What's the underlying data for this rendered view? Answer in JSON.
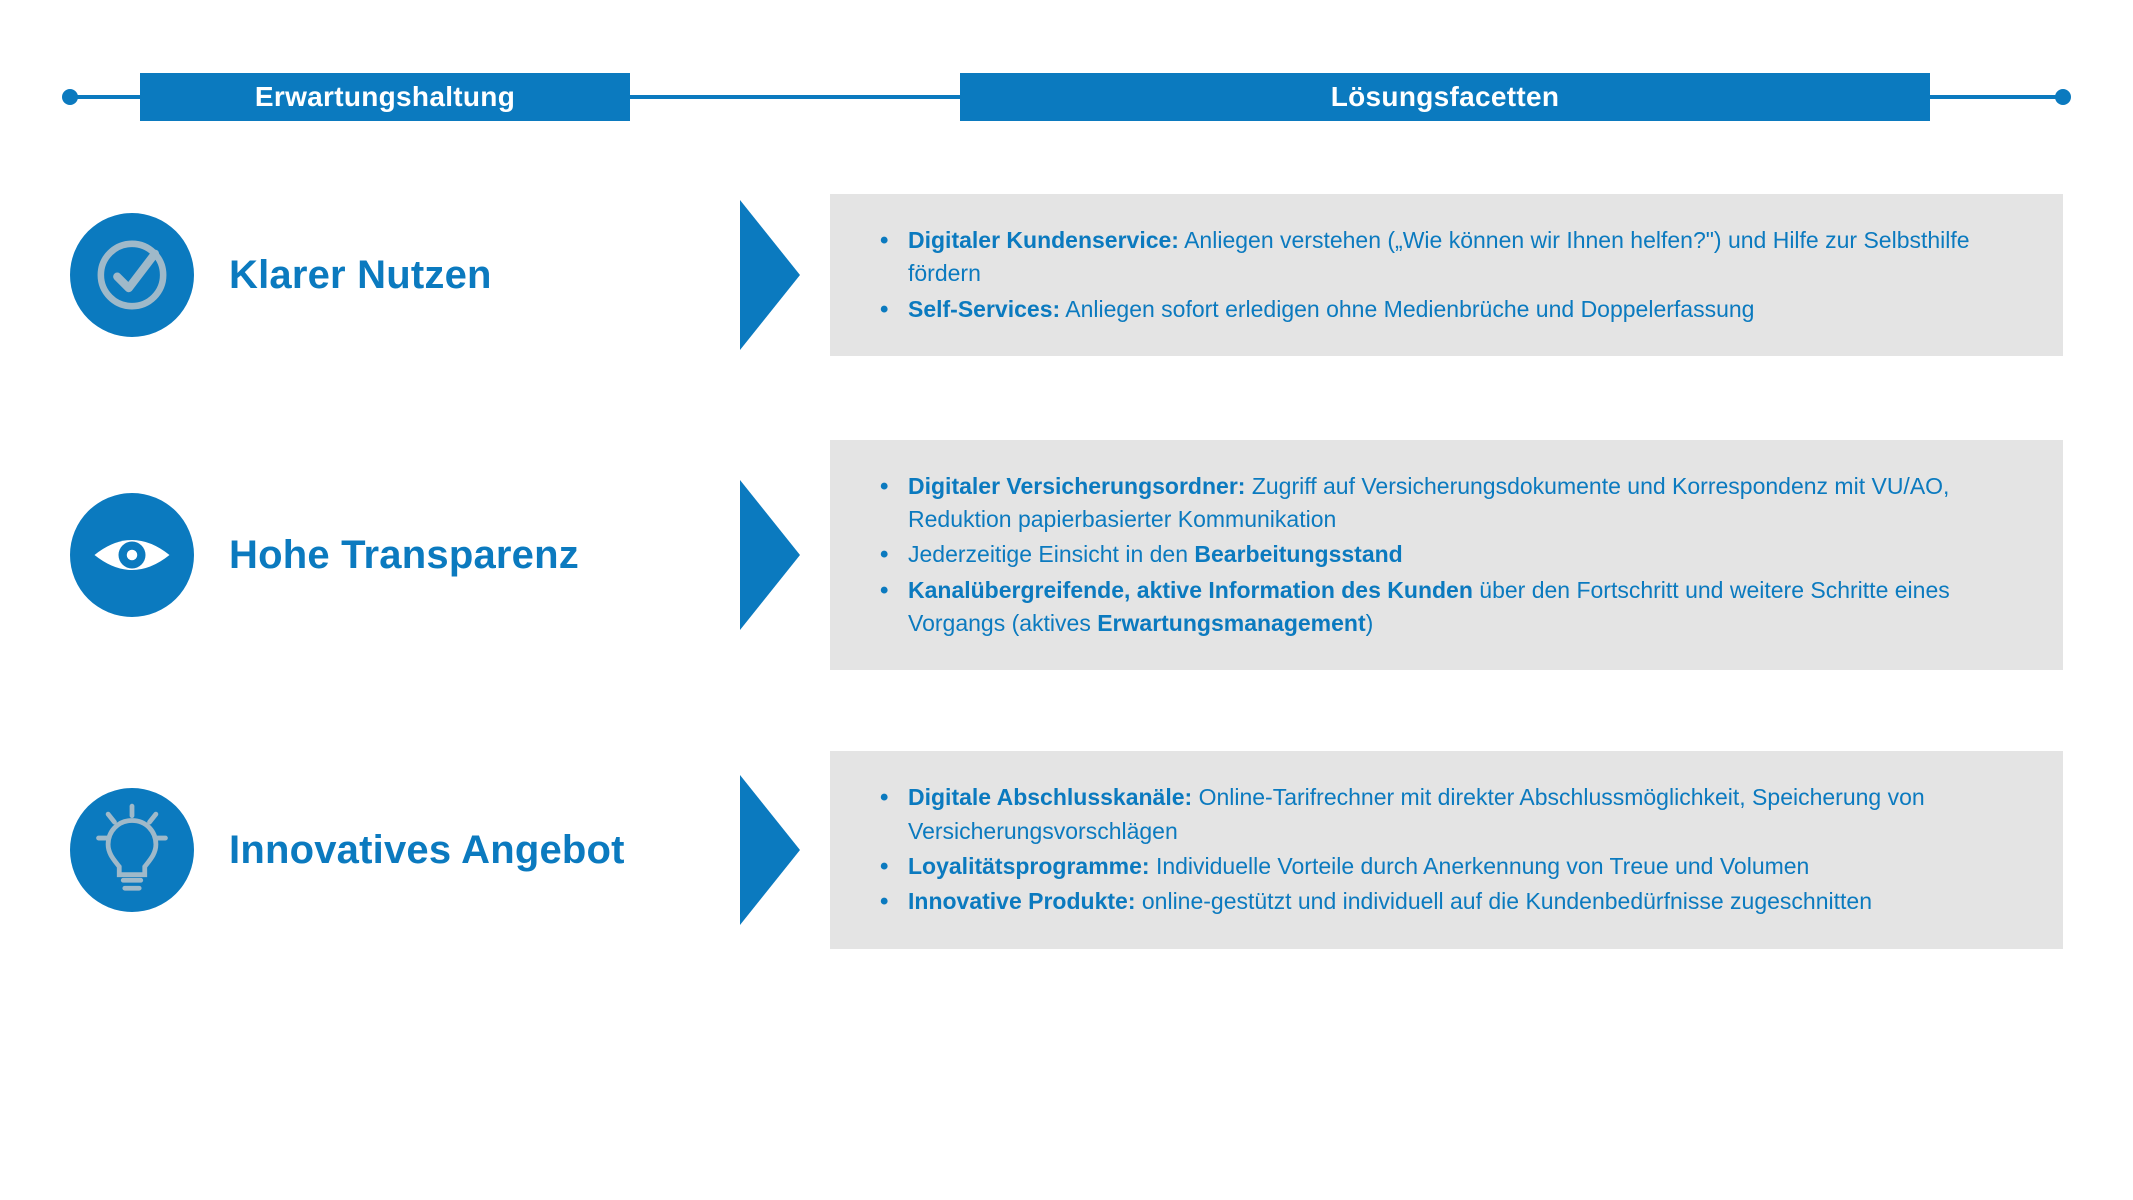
{
  "colors": {
    "accent": "#0b7abf",
    "panelBg": "#e4e4e4",
    "text": "#0b7abf",
    "iconStroke": "#9fb9c9"
  },
  "header": {
    "left": "Erwartungshaltung",
    "right": "Lösungsfacetten"
  },
  "rows": [
    {
      "icon": "check",
      "title": "Klarer Nutzen",
      "bullets": [
        "<b>Digitaler Kundenservice:</b> Anliegen verstehen („Wie können wir Ihnen helfen?\") und Hilfe zur Selbsthilfe fördern",
        "<b>Self-Services:</b> Anliegen sofort erledigen ohne Medienbrüche und Doppelerfassung"
      ]
    },
    {
      "icon": "eye",
      "title": "Hohe Transparenz",
      "bullets": [
        "<b>Digitaler Versicherungsordner:</b> Zugriff auf Versicherungsdokumente und Korrespondenz mit VU/AO, Reduktion papierbasierter Kommunikation",
        "Jederzeitige Einsicht in den <b>Bearbeitungsstand</b>",
        "<b>Kanalübergreifende, aktive Information des Kunden</b> über den Fortschritt und weitere Schritte eines Vorgangs (aktives <b>Erwartungsmanagement</b>)"
      ]
    },
    {
      "icon": "bulb",
      "title": "Innovatives Angebot",
      "bullets": [
        "<b>Digitale Abschlusskanäle:</b> Online-Tarifrechner mit direkter Abschlussmöglichkeit, Speicherung von Versicherungsvorschlägen",
        "<b>Loyalitätsprogramme:</b> Individuelle Vorteile durch Anerkennung von Treue und Volumen",
        "<b>Innovative Produkte:</b> online-gestützt und individuell auf die Kundenbedürfnisse zugeschnitten"
      ]
    }
  ]
}
